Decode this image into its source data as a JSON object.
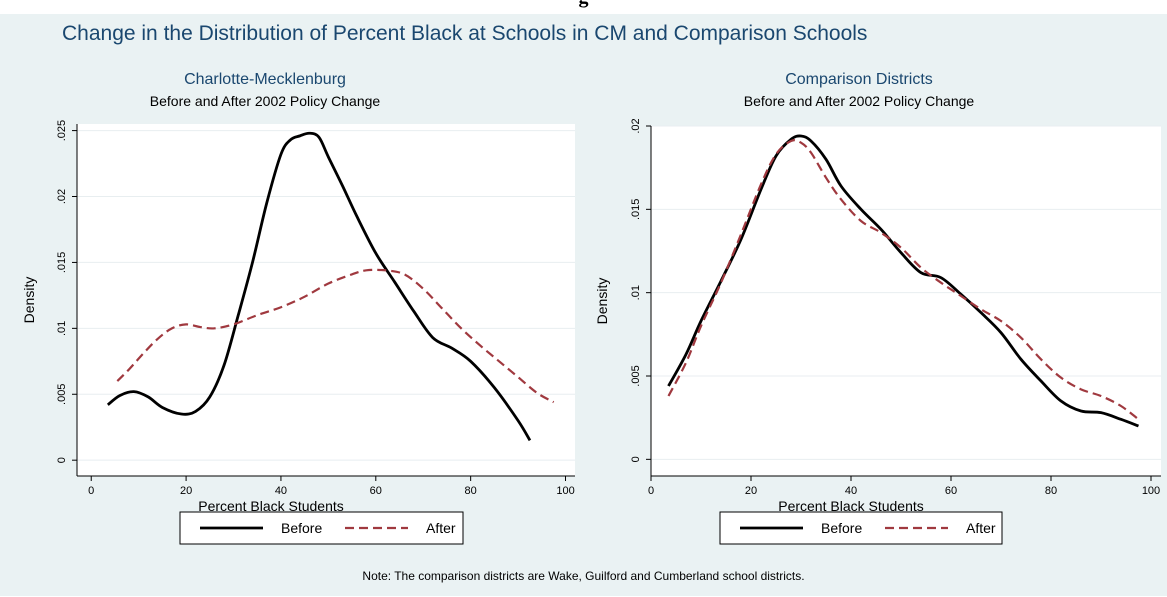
{
  "figure_title_fragment": "g",
  "main_title": "Change in the Distribution of Percent Black at Schools in CM and Comparison Schools",
  "note": "Note: The comparison districts are Wake, Guilford and Cumberland school districts.",
  "colors": {
    "background": "#eaf2f3",
    "title": "#1a476f",
    "before": "#000000",
    "after": "#a0393f",
    "grid": "#e8eef0"
  },
  "chart_data": [
    {
      "type": "line",
      "title": "Charlotte-Mecklenburg",
      "subtitle": "Before and After 2002 Policy Change",
      "xlabel": "Percent Black Students",
      "ylabel": "Density",
      "xlim": [
        -3,
        102
      ],
      "ylim": [
        -0.0012,
        0.0255
      ],
      "xticks": [
        0,
        20,
        40,
        60,
        80,
        100
      ],
      "xtick_labels": [
        "0",
        "20",
        "40",
        "60",
        "80",
        "100"
      ],
      "yticks": [
        0,
        0.005,
        0.01,
        0.015,
        0.02,
        0.025
      ],
      "ytick_labels": [
        "0",
        ".005",
        ".01",
        ".015",
        ".02",
        ".025"
      ],
      "grid": true,
      "legend": {
        "placement": "bottom",
        "entries": [
          "Before",
          "After"
        ]
      },
      "series": [
        {
          "name": "Before",
          "style": "solid",
          "x": [
            3.5,
            6,
            9,
            12,
            15,
            19,
            22,
            25,
            28,
            31,
            34,
            37,
            40,
            42,
            44,
            46,
            48,
            50,
            53,
            56,
            60,
            64,
            68,
            72,
            76,
            80,
            85,
            90,
            92.5
          ],
          "y": [
            0.0042,
            0.0049,
            0.0052,
            0.0048,
            0.004,
            0.0035,
            0.0037,
            0.0048,
            0.0072,
            0.011,
            0.015,
            0.0195,
            0.0232,
            0.0243,
            0.0246,
            0.0248,
            0.0245,
            0.023,
            0.0208,
            0.0185,
            0.0157,
            0.0135,
            0.0113,
            0.0093,
            0.0085,
            0.0075,
            0.0055,
            0.003,
            0.0015
          ]
        },
        {
          "name": "After",
          "style": "dashed",
          "x": [
            5.5,
            8,
            11,
            14,
            17,
            20,
            23,
            26,
            30,
            35,
            40,
            45,
            50,
            55,
            58,
            62,
            66,
            70,
            74,
            78,
            82,
            86,
            90,
            94,
            97.5
          ],
          "y": [
            0.006,
            0.0069,
            0.0081,
            0.0092,
            0.01,
            0.0103,
            0.0101,
            0.01,
            0.0103,
            0.011,
            0.0116,
            0.0124,
            0.0134,
            0.0141,
            0.0144,
            0.0144,
            0.0141,
            0.013,
            0.0115,
            0.01,
            0.0087,
            0.0075,
            0.0063,
            0.0051,
            0.0044
          ]
        }
      ]
    },
    {
      "type": "line",
      "title": "Comparison Districts",
      "subtitle": "Before and After 2002 Policy Change",
      "xlabel": "Percent Black Students",
      "ylabel": "Density",
      "xlim": [
        0,
        102
      ],
      "ylim": [
        -0.001,
        0.02
      ],
      "xticks": [
        0,
        20,
        40,
        60,
        80,
        100
      ],
      "xtick_labels": [
        "0",
        "20",
        "40",
        "60",
        "80",
        "100"
      ],
      "yticks": [
        0,
        0.005,
        0.01,
        0.015,
        0.02
      ],
      "ytick_labels": [
        "0",
        ".005",
        ".01",
        ".015",
        ".02"
      ],
      "grid": true,
      "legend": {
        "placement": "bottom",
        "entries": [
          "Before",
          "After"
        ]
      },
      "series": [
        {
          "name": "Before",
          "style": "solid",
          "x": [
            3.5,
            7,
            10,
            14,
            18,
            22,
            25,
            28,
            30,
            32,
            35,
            38,
            42,
            46,
            50,
            54,
            58,
            62,
            66,
            70,
            74,
            78,
            82,
            86,
            90,
            94,
            97.5
          ],
          "y": [
            0.0044,
            0.0063,
            0.0083,
            0.0107,
            0.0132,
            0.0162,
            0.0182,
            0.0192,
            0.0194,
            0.0191,
            0.018,
            0.0164,
            0.015,
            0.0138,
            0.0124,
            0.0112,
            0.0109,
            0.0099,
            0.0088,
            0.0076,
            0.006,
            0.0047,
            0.0035,
            0.0029,
            0.0028,
            0.0024,
            0.002
          ]
        },
        {
          "name": "After",
          "style": "dashed",
          "x": [
            3.5,
            7,
            10,
            14,
            18,
            22,
            25,
            28,
            30,
            32,
            35,
            38,
            42,
            46,
            50,
            54,
            58,
            62,
            66,
            70,
            74,
            78,
            82,
            86,
            90,
            94,
            97.5
          ],
          "y": [
            0.0038,
            0.0058,
            0.008,
            0.0106,
            0.0135,
            0.0165,
            0.0183,
            0.0191,
            0.019,
            0.0184,
            0.0169,
            0.0156,
            0.0143,
            0.0136,
            0.0127,
            0.0115,
            0.0106,
            0.0098,
            0.009,
            0.0083,
            0.0073,
            0.006,
            0.0049,
            0.0042,
            0.0038,
            0.0032,
            0.0024
          ]
        }
      ]
    }
  ]
}
